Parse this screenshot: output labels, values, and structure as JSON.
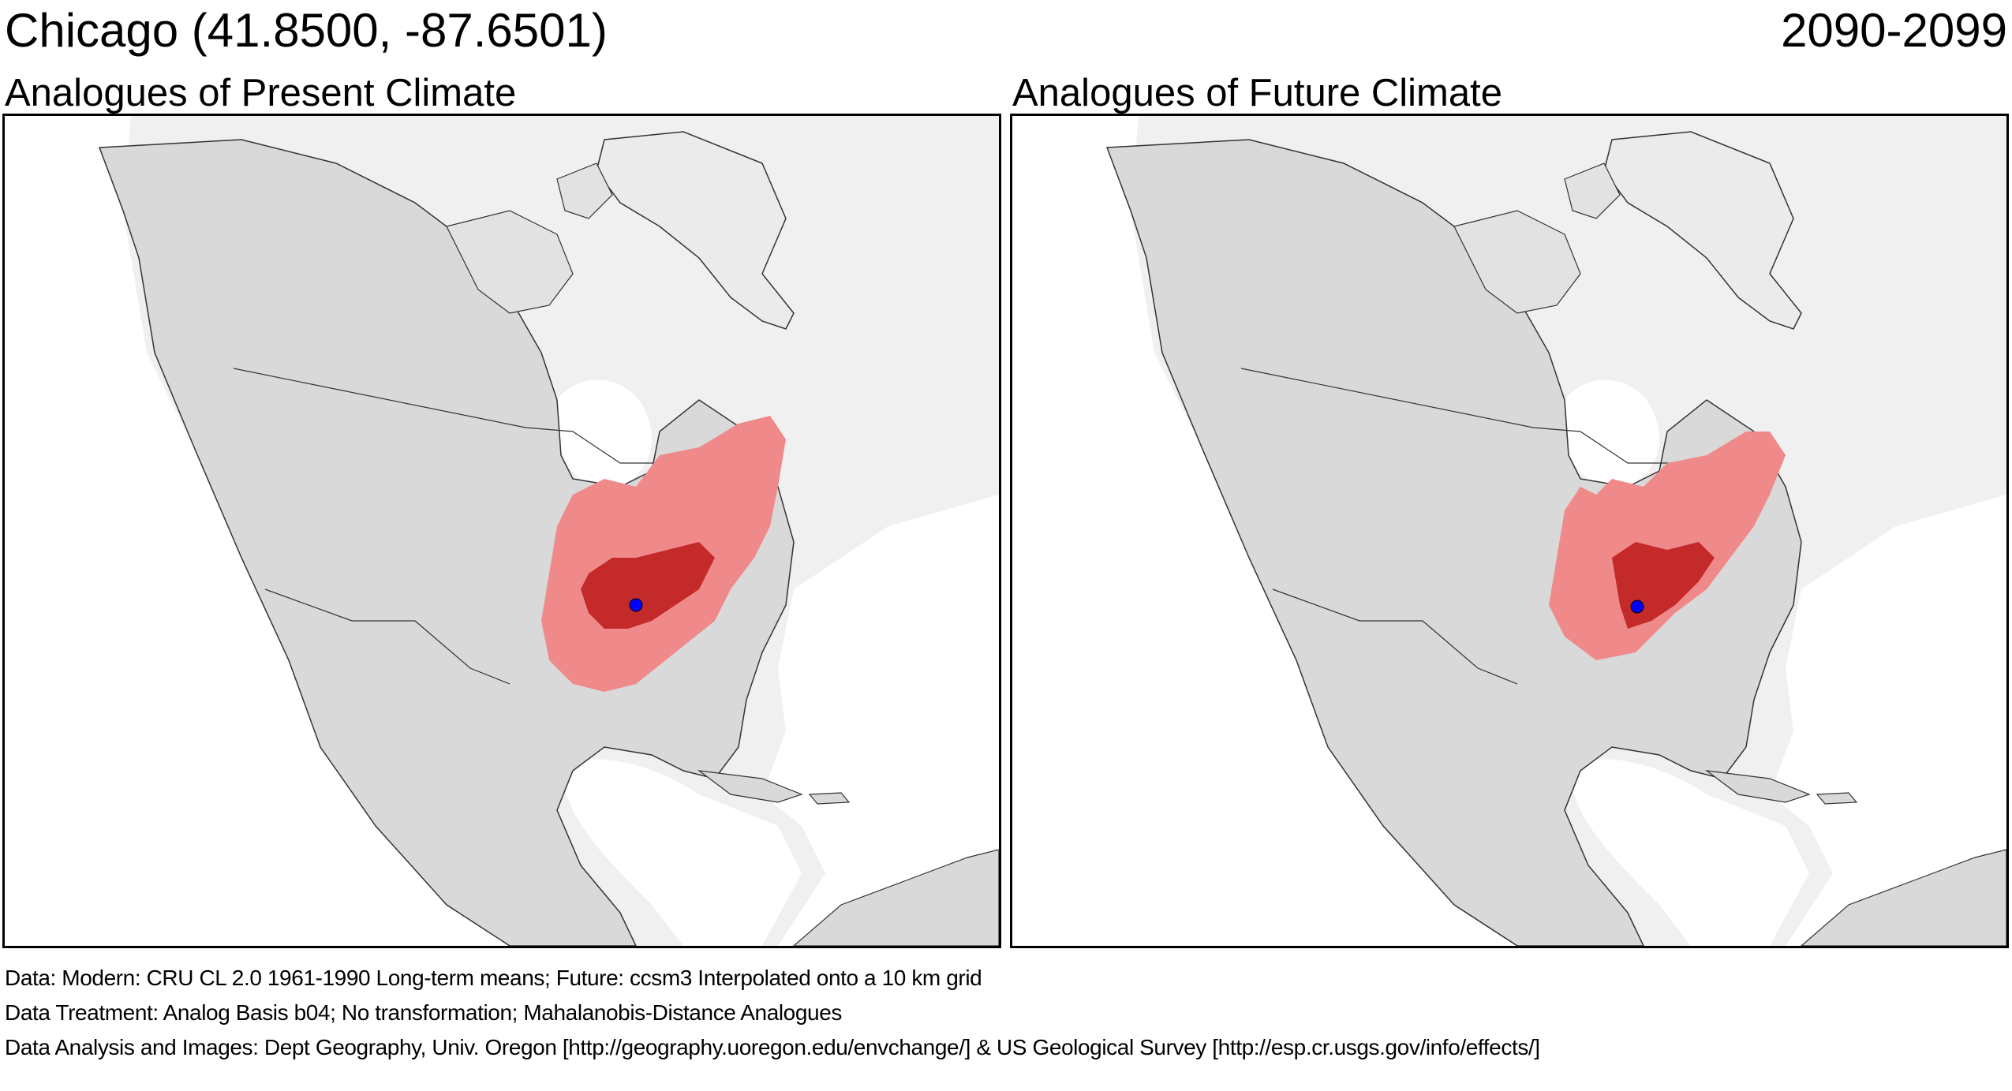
{
  "header": {
    "location": "Chicago  (41.8500, -87.6501)",
    "period": "2090-2099"
  },
  "panels": [
    {
      "title": "Analogues of Present Climate"
    },
    {
      "title": "Analogues of Future Climate"
    }
  ],
  "colors": {
    "ocean": "#ffffff",
    "land": "#d9d9d9",
    "land_light": "#ececec",
    "map_background": "#f0f0f0",
    "analogue_light": "#f08a8a",
    "analogue_dark": "#c42a2a",
    "site_marker": "#0000ff"
  },
  "notes": {
    "data": "Data:  Modern: CRU CL 2.0 1961-1990 Long-term means; Future: ccsm3 Interpolated onto a 10 km grid",
    "treatment": "Data Treatment:  Analog Basis b04; No transformation; Mahalanobis-Distance Analogues",
    "credits": "Data Analysis and Images:  Dept Geography, Univ. Oregon [http://geography.uoregon.edu/envchange/] & US Geological Survey [http://esp.cr.usgs.gov/info/effects/]"
  }
}
